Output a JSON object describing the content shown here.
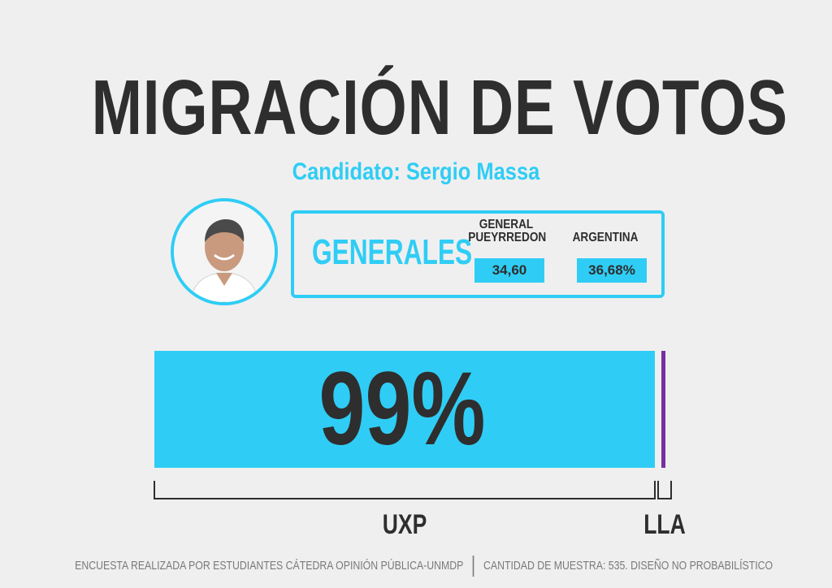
{
  "header": {
    "title": "MIGRACIÓN DE VOTOS",
    "subtitle": "Candidato: Sergio Massa"
  },
  "results": {
    "label": "GENERALES",
    "columns": [
      {
        "label_line1": "GENERAL",
        "label_line2": "PUEYRREDON",
        "value": "34,60"
      },
      {
        "label_line1": "",
        "label_line2": "ARGENTINA",
        "value": "36,68%"
      }
    ]
  },
  "colors": {
    "accent": "#2fcdf5",
    "lla": "#7a2ea0",
    "text": "#2e2e2e"
  },
  "chart_data": {
    "type": "bar",
    "orientation": "horizontal-stacked",
    "categories": [
      "UXP",
      "LLA"
    ],
    "values": [
      99,
      1
    ],
    "display_label": "99%",
    "colors": [
      "#2fcdf5",
      "#7a2ea0"
    ]
  },
  "footer": {
    "left": "ENCUESTA REALIZADA POR ESTUDIANTES CÁTEDRA OPINIÓN PÚBLICA-UNMDP",
    "right": "CANTIDAD DE MUESTRA: 535. DISEÑO NO PROBABILÍSTICO"
  },
  "icons": {
    "avatar": "candidate-photo-icon"
  }
}
